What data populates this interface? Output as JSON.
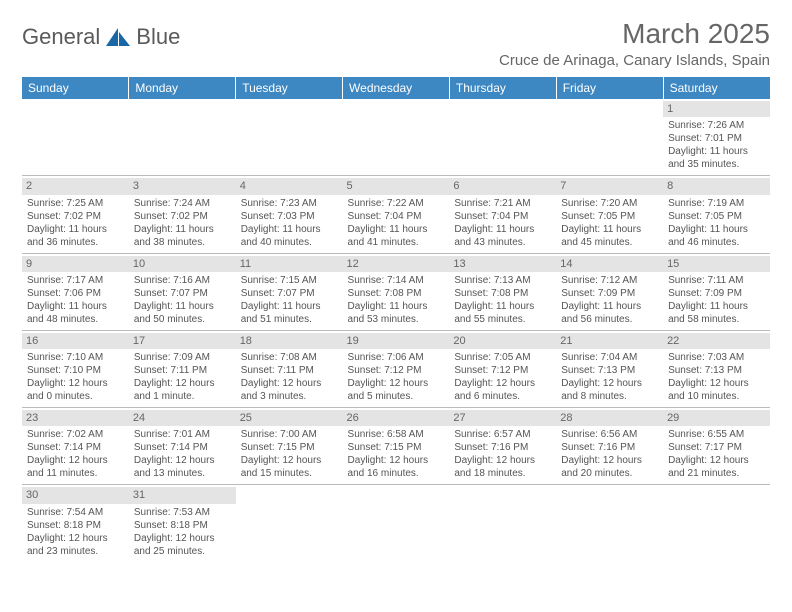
{
  "logo": {
    "word1": "General",
    "word2": "Blue",
    "icon_color": "#1868a8"
  },
  "title": "March 2025",
  "location": "Cruce de Arinaga, Canary Islands, Spain",
  "header_bg": "#3d87c2",
  "daynum_bg": "#e4e4e4",
  "weekdays": [
    "Sunday",
    "Monday",
    "Tuesday",
    "Wednesday",
    "Thursday",
    "Friday",
    "Saturday"
  ],
  "rows": [
    [
      null,
      null,
      null,
      null,
      null,
      null,
      {
        "n": "1",
        "sr": "Sunrise: 7:26 AM",
        "ss": "Sunset: 7:01 PM",
        "d1": "Daylight: 11 hours",
        "d2": "and 35 minutes."
      }
    ],
    [
      {
        "n": "2",
        "sr": "Sunrise: 7:25 AM",
        "ss": "Sunset: 7:02 PM",
        "d1": "Daylight: 11 hours",
        "d2": "and 36 minutes."
      },
      {
        "n": "3",
        "sr": "Sunrise: 7:24 AM",
        "ss": "Sunset: 7:02 PM",
        "d1": "Daylight: 11 hours",
        "d2": "and 38 minutes."
      },
      {
        "n": "4",
        "sr": "Sunrise: 7:23 AM",
        "ss": "Sunset: 7:03 PM",
        "d1": "Daylight: 11 hours",
        "d2": "and 40 minutes."
      },
      {
        "n": "5",
        "sr": "Sunrise: 7:22 AM",
        "ss": "Sunset: 7:04 PM",
        "d1": "Daylight: 11 hours",
        "d2": "and 41 minutes."
      },
      {
        "n": "6",
        "sr": "Sunrise: 7:21 AM",
        "ss": "Sunset: 7:04 PM",
        "d1": "Daylight: 11 hours",
        "d2": "and 43 minutes."
      },
      {
        "n": "7",
        "sr": "Sunrise: 7:20 AM",
        "ss": "Sunset: 7:05 PM",
        "d1": "Daylight: 11 hours",
        "d2": "and 45 minutes."
      },
      {
        "n": "8",
        "sr": "Sunrise: 7:19 AM",
        "ss": "Sunset: 7:05 PM",
        "d1": "Daylight: 11 hours",
        "d2": "and 46 minutes."
      }
    ],
    [
      {
        "n": "9",
        "sr": "Sunrise: 7:17 AM",
        "ss": "Sunset: 7:06 PM",
        "d1": "Daylight: 11 hours",
        "d2": "and 48 minutes."
      },
      {
        "n": "10",
        "sr": "Sunrise: 7:16 AM",
        "ss": "Sunset: 7:07 PM",
        "d1": "Daylight: 11 hours",
        "d2": "and 50 minutes."
      },
      {
        "n": "11",
        "sr": "Sunrise: 7:15 AM",
        "ss": "Sunset: 7:07 PM",
        "d1": "Daylight: 11 hours",
        "d2": "and 51 minutes."
      },
      {
        "n": "12",
        "sr": "Sunrise: 7:14 AM",
        "ss": "Sunset: 7:08 PM",
        "d1": "Daylight: 11 hours",
        "d2": "and 53 minutes."
      },
      {
        "n": "13",
        "sr": "Sunrise: 7:13 AM",
        "ss": "Sunset: 7:08 PM",
        "d1": "Daylight: 11 hours",
        "d2": "and 55 minutes."
      },
      {
        "n": "14",
        "sr": "Sunrise: 7:12 AM",
        "ss": "Sunset: 7:09 PM",
        "d1": "Daylight: 11 hours",
        "d2": "and 56 minutes."
      },
      {
        "n": "15",
        "sr": "Sunrise: 7:11 AM",
        "ss": "Sunset: 7:09 PM",
        "d1": "Daylight: 11 hours",
        "d2": "and 58 minutes."
      }
    ],
    [
      {
        "n": "16",
        "sr": "Sunrise: 7:10 AM",
        "ss": "Sunset: 7:10 PM",
        "d1": "Daylight: 12 hours",
        "d2": "and 0 minutes."
      },
      {
        "n": "17",
        "sr": "Sunrise: 7:09 AM",
        "ss": "Sunset: 7:11 PM",
        "d1": "Daylight: 12 hours",
        "d2": "and 1 minute."
      },
      {
        "n": "18",
        "sr": "Sunrise: 7:08 AM",
        "ss": "Sunset: 7:11 PM",
        "d1": "Daylight: 12 hours",
        "d2": "and 3 minutes."
      },
      {
        "n": "19",
        "sr": "Sunrise: 7:06 AM",
        "ss": "Sunset: 7:12 PM",
        "d1": "Daylight: 12 hours",
        "d2": "and 5 minutes."
      },
      {
        "n": "20",
        "sr": "Sunrise: 7:05 AM",
        "ss": "Sunset: 7:12 PM",
        "d1": "Daylight: 12 hours",
        "d2": "and 6 minutes."
      },
      {
        "n": "21",
        "sr": "Sunrise: 7:04 AM",
        "ss": "Sunset: 7:13 PM",
        "d1": "Daylight: 12 hours",
        "d2": "and 8 minutes."
      },
      {
        "n": "22",
        "sr": "Sunrise: 7:03 AM",
        "ss": "Sunset: 7:13 PM",
        "d1": "Daylight: 12 hours",
        "d2": "and 10 minutes."
      }
    ],
    [
      {
        "n": "23",
        "sr": "Sunrise: 7:02 AM",
        "ss": "Sunset: 7:14 PM",
        "d1": "Daylight: 12 hours",
        "d2": "and 11 minutes."
      },
      {
        "n": "24",
        "sr": "Sunrise: 7:01 AM",
        "ss": "Sunset: 7:14 PM",
        "d1": "Daylight: 12 hours",
        "d2": "and 13 minutes."
      },
      {
        "n": "25",
        "sr": "Sunrise: 7:00 AM",
        "ss": "Sunset: 7:15 PM",
        "d1": "Daylight: 12 hours",
        "d2": "and 15 minutes."
      },
      {
        "n": "26",
        "sr": "Sunrise: 6:58 AM",
        "ss": "Sunset: 7:15 PM",
        "d1": "Daylight: 12 hours",
        "d2": "and 16 minutes."
      },
      {
        "n": "27",
        "sr": "Sunrise: 6:57 AM",
        "ss": "Sunset: 7:16 PM",
        "d1": "Daylight: 12 hours",
        "d2": "and 18 minutes."
      },
      {
        "n": "28",
        "sr": "Sunrise: 6:56 AM",
        "ss": "Sunset: 7:16 PM",
        "d1": "Daylight: 12 hours",
        "d2": "and 20 minutes."
      },
      {
        "n": "29",
        "sr": "Sunrise: 6:55 AM",
        "ss": "Sunset: 7:17 PM",
        "d1": "Daylight: 12 hours",
        "d2": "and 21 minutes."
      }
    ],
    [
      {
        "n": "30",
        "sr": "Sunrise: 7:54 AM",
        "ss": "Sunset: 8:18 PM",
        "d1": "Daylight: 12 hours",
        "d2": "and 23 minutes."
      },
      {
        "n": "31",
        "sr": "Sunrise: 7:53 AM",
        "ss": "Sunset: 8:18 PM",
        "d1": "Daylight: 12 hours",
        "d2": "and 25 minutes."
      },
      null,
      null,
      null,
      null,
      null
    ]
  ]
}
